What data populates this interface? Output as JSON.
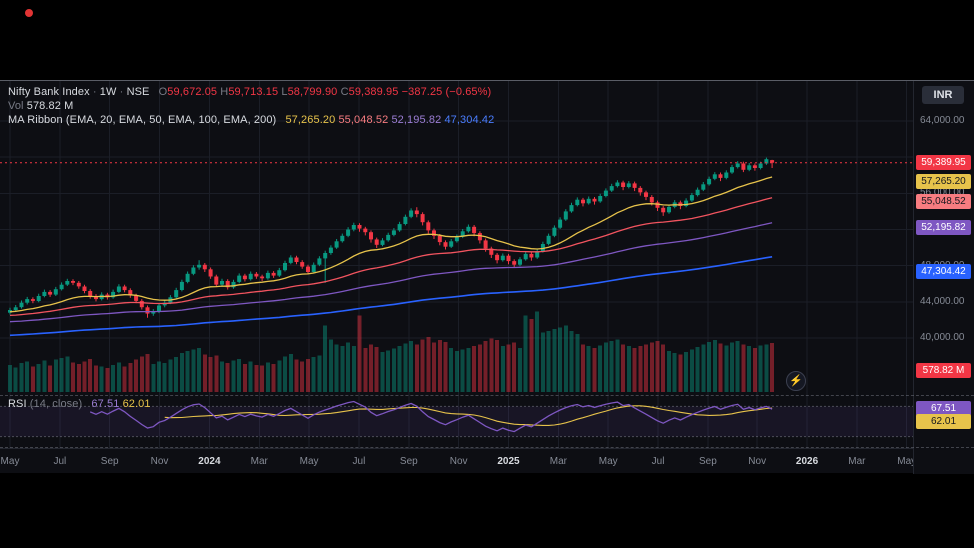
{
  "window": {
    "currency_button": "INR"
  },
  "main_legend": {
    "title": "Nifty Bank Index",
    "separator": "·",
    "interval": "1W",
    "exchange": "NSE",
    "o_label": "O",
    "o": "59,672.05",
    "h_label": "H",
    "h": "59,713.15",
    "l_label": "L",
    "l": "58,799.90",
    "c_label": "C",
    "c": "59,389.95",
    "change": "−387.25 (−0.65%)"
  },
  "volume_legend": {
    "label": "Vol",
    "value": "578.82 M"
  },
  "ma_legend": {
    "label": "MA Ribbon (EMA, 20, EMA, 50, EMA, 100, EMA, 200)",
    "ema20": "57,265.20",
    "ema50": "55,048.52",
    "ema100": "52,195.82",
    "ema200": "47,304.42"
  },
  "rsi_legend": {
    "label": "RSI",
    "params": "(14, close)",
    "value1": "67.51",
    "value2": "62.01"
  },
  "price_scale": {
    "labels": [
      {
        "text": "64,000.00",
        "price": 64000
      },
      {
        "text": "56,000.00",
        "price": 56000
      },
      {
        "text": "48,000.00",
        "price": 48000
      },
      {
        "text": "44,000.00",
        "price": 44000
      },
      {
        "text": "40,000.00",
        "price": 40000
      }
    ],
    "badges": [
      {
        "text": "59,389.95",
        "price": 59389.95,
        "bg": "#f23645",
        "fg": "#ffffff",
        "name": "last-price-badge"
      },
      {
        "text": "57,265.20",
        "price": 57265.2,
        "bg": "#e7c34b",
        "fg": "#15171e",
        "name": "ema20-badge"
      },
      {
        "text": "55,048.52",
        "price": 55048.52,
        "bg": "#f77c80",
        "fg": "#15171e",
        "name": "ema50-badge"
      },
      {
        "text": "52,195.82",
        "price": 52195.82,
        "bg": "#7e57c2",
        "fg": "#ffffff",
        "name": "ema100-badge"
      },
      {
        "text": "47,304.42",
        "price": 47304.42,
        "bg": "#2962ff",
        "fg": "#ffffff",
        "name": "ema200-badge"
      }
    ],
    "volume_badge": {
      "text": "578.82 M",
      "bg": "#f23645",
      "fg": "#ffffff"
    },
    "rsi_badges": [
      {
        "text": "67.51",
        "value": 67.51,
        "bg": "#7e57c2",
        "fg": "#ffffff"
      },
      {
        "text": "62.01",
        "value": 62.01,
        "bg": "#e7c34b",
        "fg": "#15171e"
      }
    ]
  },
  "time_axis": [
    {
      "label": "May",
      "week": 0,
      "year": false
    },
    {
      "label": "Jul",
      "week": 8.7,
      "year": false
    },
    {
      "label": "Sep",
      "week": 17.4,
      "year": false
    },
    {
      "label": "Nov",
      "week": 26.1,
      "year": false
    },
    {
      "label": "2024",
      "week": 34.8,
      "year": true
    },
    {
      "label": "Mar",
      "week": 43.5,
      "year": false
    },
    {
      "label": "May",
      "week": 52.2,
      "year": false
    },
    {
      "label": "Jul",
      "week": 60.9,
      "year": false
    },
    {
      "label": "Sep",
      "week": 69.6,
      "year": false
    },
    {
      "label": "Nov",
      "week": 78.3,
      "year": false
    },
    {
      "label": "2025",
      "week": 87,
      "year": true
    },
    {
      "label": "Mar",
      "week": 95.7,
      "year": false
    },
    {
      "label": "May",
      "week": 104.4,
      "year": false
    },
    {
      "label": "Jul",
      "week": 113.1,
      "year": false
    },
    {
      "label": "Sep",
      "week": 121.8,
      "year": false
    },
    {
      "label": "Nov",
      "week": 130.4,
      "year": false
    },
    {
      "label": "2026",
      "week": 139.1,
      "year": true
    },
    {
      "label": "Mar",
      "week": 147.8,
      "year": false
    },
    {
      "label": "May",
      "week": 156.5,
      "year": false
    }
  ],
  "chart_data": {
    "type": "candlestick",
    "title": "Nifty Bank Index",
    "interval": "1W",
    "exchange": "NSE",
    "currency": "INR",
    "last": {
      "open": 59672.05,
      "high": 59713.15,
      "low": 58799.9,
      "close": 59389.95,
      "change": -387.25,
      "change_pct": -0.65
    },
    "y_axis": {
      "min": 39000,
      "max": 64500,
      "gridlines": [
        40000,
        44000,
        48000,
        52000,
        56000,
        60000,
        64000
      ]
    },
    "volume": {
      "current_label": "578.82 M",
      "unit": "M"
    },
    "up_color": "#089981",
    "down_color": "#f23645",
    "indicators": [
      {
        "name": "EMA 20",
        "period": 20,
        "color": "#e7c34b",
        "width": 1.3,
        "start": 42900,
        "value": 57265.2
      },
      {
        "name": "EMA 50",
        "period": 50,
        "color": "#f2545f",
        "width": 1.3,
        "start": 42500,
        "value": 55048.52
      },
      {
        "name": "EMA 100",
        "period": 100,
        "color": "#7e57c2",
        "width": 1.3,
        "start": 41800,
        "value": 52195.82
      },
      {
        "name": "EMA 200",
        "period": 200,
        "color": "#2962ff",
        "width": 1.6,
        "start": 40300,
        "value": 47304.42
      }
    ],
    "rsi": {
      "period": 14,
      "source": "close",
      "value": 67.51,
      "ma_period": 14,
      "ma_value": 62.01,
      "upper_band": 70,
      "lower_band": 30,
      "line_color": "#7e57c2",
      "ma_color": "#e7c34b"
    },
    "candles": [
      [
        42800,
        43350,
        42600,
        43100,
        320
      ],
      [
        43100,
        43650,
        42900,
        43400,
        290
      ],
      [
        43400,
        44150,
        43250,
        43900,
        340
      ],
      [
        43900,
        44550,
        43700,
        44300,
        360
      ],
      [
        44300,
        44500,
        43850,
        44100,
        300
      ],
      [
        44100,
        44900,
        43950,
        44650,
        330
      ],
      [
        44650,
        45350,
        44500,
        45100,
        370
      ],
      [
        45100,
        45300,
        44550,
        44800,
        310
      ],
      [
        44800,
        45650,
        44650,
        45400,
        380
      ],
      [
        45400,
        46150,
        45250,
        45900,
        400
      ],
      [
        45900,
        46550,
        45750,
        46300,
        420
      ],
      [
        46300,
        46500,
        45850,
        46100,
        350
      ],
      [
        46100,
        46300,
        45450,
        45700,
        330
      ],
      [
        45700,
        45900,
        44950,
        45200,
        360
      ],
      [
        45200,
        45400,
        44350,
        44600,
        390
      ],
      [
        44600,
        44850,
        44050,
        44300,
        310
      ],
      [
        44300,
        45050,
        44150,
        44800,
        300
      ],
      [
        44800,
        45000,
        44250,
        44500,
        280
      ],
      [
        44500,
        45350,
        44350,
        45100,
        320
      ],
      [
        45100,
        45950,
        44950,
        45700,
        350
      ],
      [
        45700,
        45900,
        45050,
        45300,
        300
      ],
      [
        45300,
        45500,
        44450,
        44700,
        340
      ],
      [
        44700,
        44900,
        43850,
        44100,
        380
      ],
      [
        44100,
        44300,
        43150,
        43400,
        420
      ],
      [
        43400,
        43600,
        42250,
        42700,
        450
      ],
      [
        42700,
        43200,
        42450,
        42900,
        330
      ],
      [
        42900,
        43850,
        42750,
        43600,
        360
      ],
      [
        43600,
        44150,
        43400,
        43900,
        340
      ],
      [
        43900,
        44750,
        43750,
        44500,
        380
      ],
      [
        44500,
        45550,
        44350,
        45300,
        410
      ],
      [
        45300,
        46450,
        45150,
        46200,
        460
      ],
      [
        46200,
        47350,
        46050,
        47100,
        480
      ],
      [
        47100,
        48050,
        46950,
        47800,
        500
      ],
      [
        47800,
        48600,
        47550,
        48100,
        520
      ],
      [
        48100,
        48300,
        47300,
        47600,
        440
      ],
      [
        47600,
        47800,
        46550,
        46800,
        410
      ],
      [
        46800,
        47000,
        45650,
        45900,
        430
      ],
      [
        45900,
        46550,
        45700,
        46300,
        360
      ],
      [
        46300,
        46500,
        45350,
        45600,
        340
      ],
      [
        45600,
        46450,
        45450,
        46200,
        370
      ],
      [
        46200,
        47150,
        46050,
        46900,
        390
      ],
      [
        46900,
        47100,
        46250,
        46500,
        330
      ],
      [
        46500,
        47350,
        46350,
        47100,
        360
      ],
      [
        47100,
        47300,
        46550,
        46800,
        320
      ],
      [
        46800,
        47000,
        46300,
        46600,
        310
      ],
      [
        46600,
        47450,
        46450,
        47200,
        350
      ],
      [
        47200,
        47400,
        46650,
        46900,
        330
      ],
      [
        46900,
        47750,
        46750,
        47500,
        370
      ],
      [
        47500,
        48550,
        47350,
        48300,
        420
      ],
      [
        48300,
        49150,
        48150,
        48900,
        450
      ],
      [
        48900,
        49100,
        48150,
        48400,
        380
      ],
      [
        48400,
        48600,
        47650,
        47900,
        360
      ],
      [
        47900,
        48100,
        47050,
        47300,
        390
      ],
      [
        47300,
        48350,
        47150,
        48100,
        410
      ],
      [
        48100,
        49050,
        47950,
        48800,
        430
      ],
      [
        48800,
        49650,
        46100,
        49400,
        780
      ],
      [
        49400,
        50250,
        49200,
        50000,
        620
      ],
      [
        50000,
        50950,
        49850,
        50700,
        560
      ],
      [
        50700,
        51550,
        50550,
        51300,
        540
      ],
      [
        51300,
        52250,
        51150,
        52000,
        580
      ],
      [
        52000,
        52750,
        51800,
        52500,
        540
      ],
      [
        52500,
        52700,
        51750,
        52100,
        900
      ],
      [
        52100,
        52300,
        51350,
        51700,
        520
      ],
      [
        51700,
        51900,
        50550,
        50900,
        560
      ],
      [
        50900,
        51100,
        49950,
        50300,
        530
      ],
      [
        50300,
        51050,
        50150,
        50800,
        470
      ],
      [
        50800,
        51650,
        50650,
        51400,
        490
      ],
      [
        51400,
        52150,
        51250,
        51900,
        510
      ],
      [
        51900,
        52850,
        51750,
        52600,
        540
      ],
      [
        52600,
        53650,
        52450,
        53400,
        570
      ],
      [
        53400,
        54350,
        53250,
        54100,
        600
      ],
      [
        54100,
        54467,
        53350,
        53700,
        560
      ],
      [
        53700,
        53900,
        52450,
        52800,
        620
      ],
      [
        52800,
        53000,
        51550,
        51900,
        650
      ],
      [
        51900,
        52100,
        50950,
        51300,
        580
      ],
      [
        51300,
        51500,
        50250,
        50600,
        610
      ],
      [
        50600,
        50800,
        49787,
        50100,
        590
      ],
      [
        50100,
        50950,
        49950,
        50700,
        520
      ],
      [
        50700,
        51450,
        50550,
        51200,
        480
      ],
      [
        51200,
        52050,
        51050,
        51800,
        500
      ],
      [
        51800,
        52550,
        51650,
        52300,
        520
      ],
      [
        52300,
        52500,
        51250,
        51600,
        540
      ],
      [
        51600,
        51800,
        50450,
        50800,
        560
      ],
      [
        50800,
        51000,
        49550,
        49900,
        600
      ],
      [
        49900,
        50100,
        48850,
        49200,
        630
      ],
      [
        49200,
        49400,
        48250,
        48600,
        610
      ],
      [
        48600,
        49350,
        48450,
        49100,
        540
      ],
      [
        49100,
        49300,
        48150,
        48500,
        560
      ],
      [
        48500,
        48700,
        47840,
        48100,
        580
      ],
      [
        48100,
        48950,
        47950,
        48700,
        520
      ],
      [
        48700,
        49550,
        48550,
        49300,
        900
      ],
      [
        49300,
        49500,
        48550,
        48900,
        860
      ],
      [
        48900,
        49850,
        48750,
        49600,
        950
      ],
      [
        49600,
        50650,
        49450,
        50400,
        700
      ],
      [
        50400,
        51550,
        50250,
        51300,
        720
      ],
      [
        51300,
        52450,
        51150,
        52200,
        740
      ],
      [
        52200,
        53350,
        52050,
        53100,
        760
      ],
      [
        53100,
        54250,
        52950,
        54000,
        780
      ],
      [
        54000,
        54950,
        53850,
        54700,
        720
      ],
      [
        54700,
        55550,
        54550,
        55300,
        680
      ],
      [
        55300,
        55500,
        54550,
        54900,
        560
      ],
      [
        54900,
        55650,
        54750,
        55400,
        540
      ],
      [
        55400,
        55600,
        54750,
        55100,
        520
      ],
      [
        55100,
        55950,
        54950,
        55700,
        550
      ],
      [
        55700,
        56550,
        55550,
        56300,
        580
      ],
      [
        56300,
        57050,
        56150,
        56800,
        600
      ],
      [
        56800,
        57450,
        56650,
        57200,
        620
      ],
      [
        57200,
        57400,
        56350,
        56700,
        560
      ],
      [
        56700,
        57350,
        56550,
        57100,
        540
      ],
      [
        57100,
        57300,
        56250,
        56600,
        520
      ],
      [
        56600,
        56800,
        55750,
        56100,
        540
      ],
      [
        56100,
        56300,
        55250,
        55600,
        560
      ],
      [
        55600,
        55800,
        54650,
        55000,
        580
      ],
      [
        55000,
        55200,
        54050,
        54400,
        600
      ],
      [
        54400,
        54600,
        53500,
        53900,
        560
      ],
      [
        53900,
        54750,
        53750,
        54500,
        480
      ],
      [
        54500,
        55250,
        54350,
        55000,
        460
      ],
      [
        55000,
        55200,
        54250,
        54600,
        440
      ],
      [
        54600,
        55450,
        54450,
        55200,
        470
      ],
      [
        55200,
        56050,
        55050,
        55800,
        500
      ],
      [
        55800,
        56650,
        55650,
        56400,
        530
      ],
      [
        56400,
        57250,
        56250,
        57000,
        560
      ],
      [
        57000,
        57850,
        56850,
        57600,
        590
      ],
      [
        57600,
        58350,
        57450,
        58100,
        610
      ],
      [
        58100,
        58300,
        57350,
        57700,
        570
      ],
      [
        57700,
        58550,
        57550,
        58300,
        550
      ],
      [
        58300,
        59150,
        58150,
        58900,
        580
      ],
      [
        58900,
        59550,
        58750,
        59300,
        600
      ],
      [
        59300,
        59500,
        58350,
        58600,
        560
      ],
      [
        58600,
        59350,
        58450,
        59100,
        540
      ],
      [
        59100,
        59300,
        58500,
        58800,
        520
      ],
      [
        58800,
        59500,
        58650,
        59300,
        550
      ],
      [
        59300,
        59950,
        59150,
        59777.2,
        560
      ],
      [
        59672.05,
        59713.15,
        58799.9,
        59389.95,
        578.82
      ]
    ]
  }
}
